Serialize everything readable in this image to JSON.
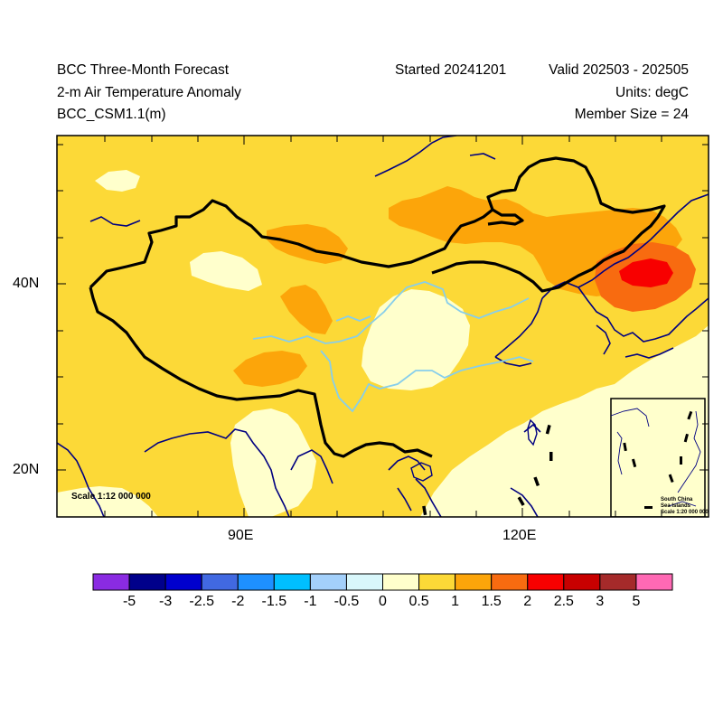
{
  "header": {
    "title": "BCC Three-Month Forecast",
    "variable": "2-m Air Temperature Anomaly",
    "model": "BCC_CSM1.1(m)",
    "started": "Started 20241201",
    "valid": "Valid 202503 - 202505",
    "units": "Units: degC",
    "member_size": "Member Size = 24"
  },
  "map": {
    "lat_labels": [
      "40N",
      "20N"
    ],
    "lon_labels": [
      "90E",
      "120E"
    ],
    "scale_label": "Scale 1:12 000 000",
    "inset": {
      "title_line1": "South China",
      "title_line2": "Sea Islands",
      "scale": "Scale 1:20 000 000"
    }
  },
  "colorbar": {
    "labels": [
      "-5",
      "-3",
      "-2.5",
      "-2",
      "-1.5",
      "-1",
      "-0.5",
      "0",
      "0.5",
      "1",
      "1.5",
      "2",
      "2.5",
      "3",
      "5"
    ],
    "colors": [
      "#8a2be2",
      "#00008b",
      "#0000cd",
      "#4169e1",
      "#1e90ff",
      "#00bfff",
      "#a3d0fb",
      "#d9f7fb",
      "#ffffcc",
      "#fcd937",
      "#fca50a",
      "#f86b10",
      "#f80000",
      "#c80000",
      "#a52a2a",
      "#ff69b4"
    ]
  },
  "field": {
    "background_anomaly_degC": 0.5,
    "warm_centre_northeast_degC": 2
  }
}
